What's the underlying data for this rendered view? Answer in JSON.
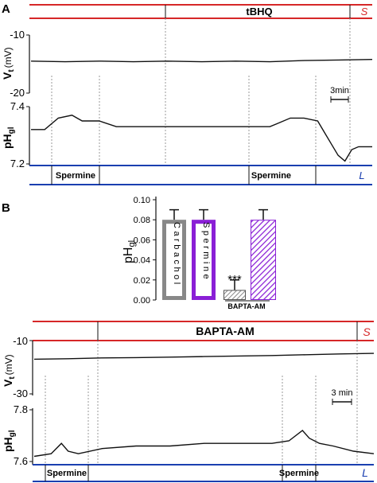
{
  "panels": {
    "a_label": "A",
    "b_label": "B"
  },
  "colors": {
    "red": "#d62728",
    "blue": "#1a3fb0",
    "gray": "#888888",
    "purple": "#8a1fd6",
    "trace": "#111111",
    "dashed": "#9a9a9a"
  },
  "panel_a": {
    "drug_label": "tBHQ",
    "solution_s": "S",
    "solution_l": "L",
    "spermine_1": "Spermine",
    "spermine_2": "Spermine",
    "vt_axis": {
      "label_main": "V",
      "label_sub": "t",
      "label_unit": "(mV)",
      "ticks": [
        "-10",
        "-20"
      ]
    },
    "ph_axis": {
      "label_main": "pH",
      "label_sub": "gl",
      "ticks": [
        "7.4",
        "7.2"
      ]
    },
    "scale_bar": "3min"
  },
  "bar_inset": {
    "ylabel_main": "pH",
    "ylabel_sub": "gl",
    "ticks": [
      "0.10",
      "0.08",
      "0.06",
      "0.04",
      "0.02",
      "0.00"
    ],
    "bar_text_1": "Carbachol",
    "bar_text_2": "Spermine",
    "significance": "***",
    "group_label": "BAPTA-AM"
  },
  "panel_b": {
    "drug_label": "BAPTA-AM",
    "solution_s": "S",
    "solution_l": "L",
    "spermine_1": "Spermine",
    "spermine_2": "Spermine",
    "vt_axis": {
      "label_main": "V",
      "label_sub": "t",
      "label_unit": "(mV)",
      "ticks": [
        "-10",
        "-30"
      ]
    },
    "ph_axis": {
      "label_main": "pH",
      "label_sub": "gl",
      "ticks": [
        "7.8",
        "7.6"
      ]
    },
    "scale_bar": "3 min"
  },
  "chart_data": [
    {
      "type": "line",
      "panel": "A-Vt",
      "ylim": [
        -20,
        -10
      ],
      "x": [
        0,
        10,
        20,
        30,
        40,
        50,
        60,
        70,
        80,
        90,
        100
      ],
      "values": [
        -14.5,
        -14.6,
        -14.5,
        -14.6,
        -14.5,
        -14.6,
        -14.5,
        -14.6,
        -14.4,
        -14.3,
        -14.2
      ]
    },
    {
      "type": "line",
      "panel": "A-pHgl",
      "ylim": [
        7.2,
        7.4
      ],
      "x": [
        0,
        4,
        8,
        12,
        15,
        20,
        25,
        30,
        40,
        50,
        60,
        70,
        72,
        76,
        80,
        84,
        86,
        88,
        90,
        92,
        94,
        96,
        100
      ],
      "values": [
        7.32,
        7.32,
        7.36,
        7.37,
        7.35,
        7.35,
        7.33,
        7.33,
        7.33,
        7.33,
        7.33,
        7.33,
        7.34,
        7.36,
        7.36,
        7.35,
        7.31,
        7.27,
        7.23,
        7.21,
        7.25,
        7.26,
        7.26
      ]
    },
    {
      "type": "bar",
      "panel": "B-inset",
      "ylim": [
        0,
        0.1
      ],
      "series": [
        {
          "values": [
            0.08,
            0.08
          ]
        },
        {
          "values": [
            0.01,
            0.08
          ]
        }
      ],
      "errors": [
        [
          0.01,
          0.01
        ],
        [
          0.01,
          0.01
        ]
      ]
    },
    {
      "type": "line",
      "panel": "B-Vt",
      "ylim": [
        -30,
        -10
      ],
      "x": [
        0,
        10,
        20,
        30,
        40,
        50,
        60,
        70,
        80,
        90,
        100
      ],
      "values": [
        -17.0,
        -16.8,
        -16.5,
        -16.4,
        -16.2,
        -16.0,
        -15.8,
        -15.6,
        -15.3,
        -15.0,
        -14.8
      ]
    },
    {
      "type": "line",
      "panel": "B-pHgl",
      "ylim": [
        7.6,
        7.8
      ],
      "x": [
        0,
        5,
        8,
        10,
        13,
        20,
        30,
        40,
        50,
        60,
        70,
        75,
        79,
        81,
        84,
        88,
        94,
        100
      ],
      "values": [
        7.62,
        7.63,
        7.67,
        7.64,
        7.63,
        7.65,
        7.66,
        7.66,
        7.67,
        7.67,
        7.67,
        7.68,
        7.72,
        7.69,
        7.67,
        7.66,
        7.64,
        7.63
      ]
    }
  ]
}
